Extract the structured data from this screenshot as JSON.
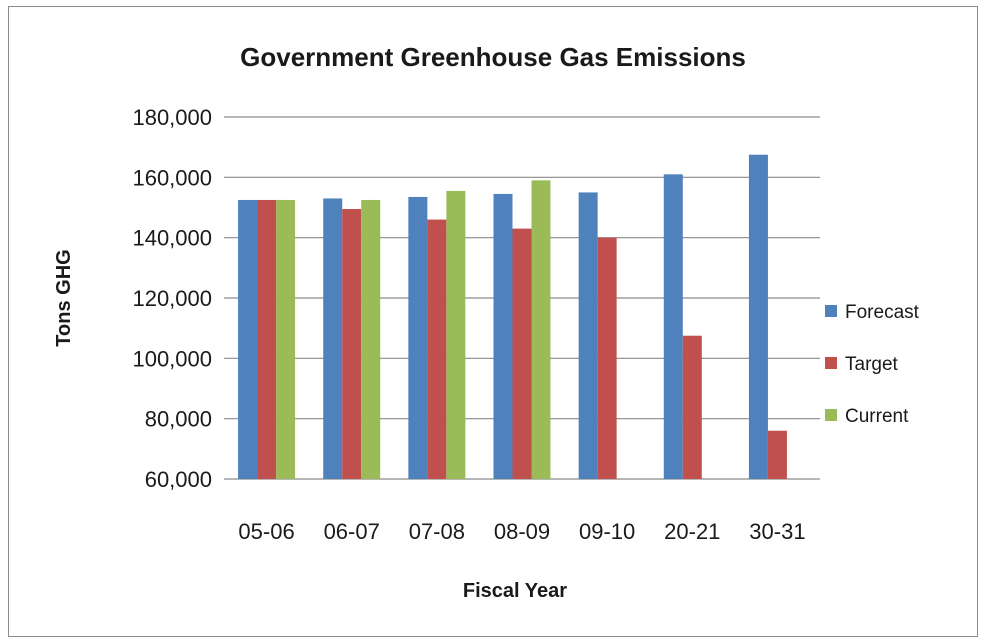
{
  "chart_data": {
    "type": "bar",
    "title": "Government Greenhouse Gas Emissions",
    "xlabel": "Fiscal Year",
    "ylabel": "Tons GHG",
    "categories": [
      "05-06",
      "06-07",
      "07-08",
      "08-09",
      "09-10",
      "20-21",
      "30-31"
    ],
    "series": [
      {
        "name": "Forecast",
        "color": "#4f81bd",
        "values": [
          152500,
          153000,
          153500,
          154500,
          155000,
          161000,
          167500
        ]
      },
      {
        "name": "Target",
        "color": "#c0504d",
        "values": [
          152500,
          149500,
          146000,
          143000,
          140000,
          107500,
          76000
        ]
      },
      {
        "name": "Current",
        "color": "#9bbb59",
        "values": [
          152500,
          152500,
          155500,
          159000,
          null,
          null,
          null
        ]
      }
    ],
    "ylim": [
      60000,
      180000
    ],
    "yticks": [
      60000,
      80000,
      100000,
      120000,
      140000,
      160000,
      180000
    ],
    "ytick_labels": [
      "60,000",
      "80,000",
      "100,000",
      "120,000",
      "140,000",
      "160,000",
      "180,000"
    ],
    "grid": true,
    "legend_position": "right"
  }
}
